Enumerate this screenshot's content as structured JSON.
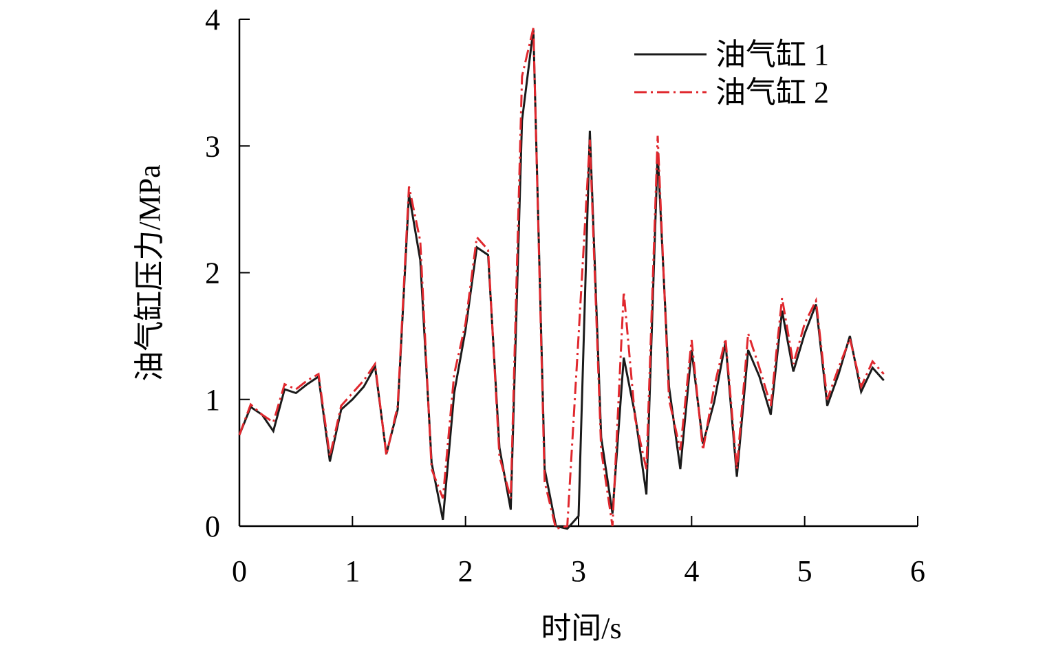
{
  "chart_data": {
    "type": "line",
    "title": "",
    "xlabel": "时间/s",
    "ylabel": "油气缸压力/MPa",
    "xlim": [
      0,
      6
    ],
    "ylim": [
      0,
      4
    ],
    "xticks": [
      "0",
      "1",
      "2",
      "3",
      "4",
      "5",
      "6"
    ],
    "yticks": [
      "0",
      "1",
      "2",
      "3",
      "4"
    ],
    "grid": false,
    "legend_position": "top-right",
    "series": [
      {
        "name": "油气缸 1",
        "color": "#1a1a1a",
        "dash": "solid",
        "points": [
          [
            0,
            0.72
          ],
          [
            0.1,
            0.94
          ],
          [
            0.2,
            0.88
          ],
          [
            0.3,
            0.75
          ],
          [
            0.4,
            1.08
          ],
          [
            0.5,
            1.05
          ],
          [
            0.6,
            1.12
          ],
          [
            0.7,
            1.18
          ],
          [
            0.8,
            0.51
          ],
          [
            0.9,
            0.92
          ],
          [
            1.0,
            1.0
          ],
          [
            1.1,
            1.1
          ],
          [
            1.2,
            1.26
          ],
          [
            1.3,
            0.57
          ],
          [
            1.4,
            0.92
          ],
          [
            1.5,
            2.62
          ],
          [
            1.6,
            2.1
          ],
          [
            1.7,
            0.5
          ],
          [
            1.8,
            0.05
          ],
          [
            1.9,
            1.05
          ],
          [
            2.0,
            1.55
          ],
          [
            2.1,
            2.2
          ],
          [
            2.2,
            2.14
          ],
          [
            2.3,
            0.62
          ],
          [
            2.4,
            0.13
          ],
          [
            2.5,
            3.2
          ],
          [
            2.6,
            3.92
          ],
          [
            2.7,
            0.45
          ],
          [
            2.8,
            0.0
          ],
          [
            2.9,
            -0.02
          ],
          [
            3.0,
            0.08
          ],
          [
            3.1,
            3.12
          ],
          [
            3.2,
            0.7
          ],
          [
            3.3,
            0.1
          ],
          [
            3.4,
            1.33
          ],
          [
            3.5,
            0.88
          ],
          [
            3.6,
            0.25
          ],
          [
            3.7,
            2.95
          ],
          [
            3.8,
            1.1
          ],
          [
            3.9,
            0.45
          ],
          [
            4.0,
            1.39
          ],
          [
            4.1,
            0.65
          ],
          [
            4.2,
            0.98
          ],
          [
            4.3,
            1.45
          ],
          [
            4.4,
            0.39
          ],
          [
            4.5,
            1.39
          ],
          [
            4.6,
            1.18
          ],
          [
            4.7,
            0.88
          ],
          [
            4.8,
            1.7
          ],
          [
            4.9,
            1.22
          ],
          [
            5.0,
            1.52
          ],
          [
            5.1,
            1.75
          ],
          [
            5.2,
            0.95
          ],
          [
            5.3,
            1.2
          ],
          [
            5.4,
            1.5
          ],
          [
            5.5,
            1.06
          ],
          [
            5.6,
            1.25
          ],
          [
            5.7,
            1.15
          ]
        ]
      },
      {
        "name": "油气缸 2",
        "color": "#e0282e",
        "dash": "dashdot",
        "points": [
          [
            0,
            0.72
          ],
          [
            0.1,
            0.96
          ],
          [
            0.2,
            0.88
          ],
          [
            0.3,
            0.82
          ],
          [
            0.4,
            1.12
          ],
          [
            0.5,
            1.08
          ],
          [
            0.6,
            1.15
          ],
          [
            0.7,
            1.2
          ],
          [
            0.8,
            0.55
          ],
          [
            0.9,
            0.95
          ],
          [
            1.0,
            1.05
          ],
          [
            1.1,
            1.15
          ],
          [
            1.2,
            1.28
          ],
          [
            1.3,
            0.56
          ],
          [
            1.4,
            0.95
          ],
          [
            1.5,
            2.68
          ],
          [
            1.6,
            2.25
          ],
          [
            1.7,
            0.45
          ],
          [
            1.8,
            0.22
          ],
          [
            1.9,
            1.2
          ],
          [
            2.0,
            1.6
          ],
          [
            2.1,
            2.28
          ],
          [
            2.2,
            2.18
          ],
          [
            2.3,
            0.55
          ],
          [
            2.4,
            0.22
          ],
          [
            2.5,
            3.55
          ],
          [
            2.6,
            3.93
          ],
          [
            2.7,
            0.35
          ],
          [
            2.8,
            -0.02
          ],
          [
            2.9,
            0.0
          ],
          [
            3.0,
            1.5
          ],
          [
            3.1,
            3.05
          ],
          [
            3.2,
            0.6
          ],
          [
            3.3,
            0.0
          ],
          [
            3.4,
            1.85
          ],
          [
            3.5,
            0.85
          ],
          [
            3.6,
            0.45
          ],
          [
            3.7,
            3.08
          ],
          [
            3.8,
            1.0
          ],
          [
            3.9,
            0.6
          ],
          [
            4.0,
            1.47
          ],
          [
            4.1,
            0.6
          ],
          [
            4.2,
            1.1
          ],
          [
            4.3,
            1.48
          ],
          [
            4.4,
            0.45
          ],
          [
            4.5,
            1.52
          ],
          [
            4.6,
            1.25
          ],
          [
            4.7,
            0.95
          ],
          [
            4.8,
            1.8
          ],
          [
            4.9,
            1.28
          ],
          [
            5.0,
            1.6
          ],
          [
            5.1,
            1.78
          ],
          [
            5.2,
            1.0
          ],
          [
            5.3,
            1.25
          ],
          [
            5.4,
            1.48
          ],
          [
            5.5,
            1.1
          ],
          [
            5.6,
            1.3
          ],
          [
            5.7,
            1.2
          ]
        ]
      }
    ]
  }
}
